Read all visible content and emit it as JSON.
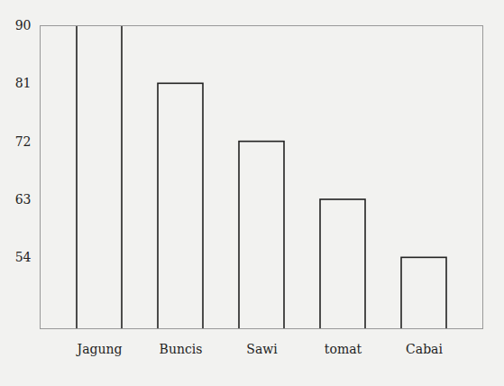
{
  "chart_data": {
    "type": "bar",
    "categories": [
      "Jagung",
      "Buncis",
      "Sawi",
      "tomat",
      "Cabai"
    ],
    "values": [
      90,
      81,
      72,
      63,
      54
    ],
    "color": "#222222",
    "ylim": [
      43,
      90
    ],
    "yticks": [
      54,
      63,
      72,
      81,
      90
    ],
    "grid": false
  }
}
